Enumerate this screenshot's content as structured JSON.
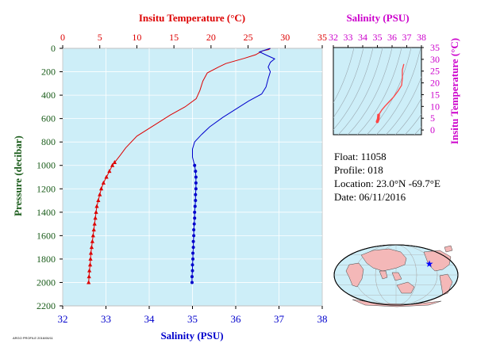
{
  "chart_data": [
    {
      "type": "line",
      "title": "",
      "top_axis": {
        "label": "Insitu Temperature (°C)",
        "range": [
          0,
          35
        ],
        "ticks": [
          0,
          5,
          10,
          15,
          20,
          25,
          30,
          35
        ],
        "color": "#dd0000"
      },
      "bottom_axis": {
        "label": "Salinity (PSU)",
        "range": [
          32,
          38
        ],
        "ticks": [
          32,
          33,
          34,
          35,
          36,
          37,
          38
        ],
        "color": "#0000cc"
      },
      "left_axis": {
        "label": "Pressure (decibar)",
        "range": [
          0,
          2200
        ],
        "inverted": true,
        "ticks": [
          0,
          200,
          400,
          600,
          800,
          1000,
          1200,
          1400,
          1600,
          1800,
          2000,
          2200
        ],
        "color": "#1a5c1a"
      },
      "background": "#cdeef8",
      "grid": true,
      "series": [
        {
          "key": "temperature",
          "axis": "top",
          "color": "#dd0000",
          "marker": "triangle",
          "points": [
            [
              28.0,
              0
            ],
            [
              27.8,
              10
            ],
            [
              27.0,
              20
            ],
            [
              26.0,
              55
            ],
            [
              24.5,
              85
            ],
            [
              22.0,
              130
            ],
            [
              21.0,
              160
            ],
            [
              19.5,
              210
            ],
            [
              18.9,
              280
            ],
            [
              18.5,
              360
            ],
            [
              18.0,
              430
            ],
            [
              16.5,
              500
            ],
            [
              14.5,
              570
            ],
            [
              12.5,
              650
            ],
            [
              10.0,
              750
            ],
            [
              8.5,
              850
            ],
            [
              7.8,
              910
            ],
            [
              7.0,
              975
            ],
            [
              6.7,
              1000
            ],
            [
              6.3,
              1050
            ],
            [
              5.9,
              1100
            ],
            [
              5.5,
              1150
            ],
            [
              5.2,
              1200
            ],
            [
              5.0,
              1250
            ],
            [
              4.8,
              1300
            ],
            [
              4.6,
              1350
            ],
            [
              4.5,
              1400
            ],
            [
              4.4,
              1450
            ],
            [
              4.3,
              1500
            ],
            [
              4.2,
              1550
            ],
            [
              4.1,
              1600
            ],
            [
              4.0,
              1650
            ],
            [
              3.9,
              1700
            ],
            [
              3.8,
              1750
            ],
            [
              3.75,
              1800
            ],
            [
              3.7,
              1850
            ],
            [
              3.6,
              1900
            ],
            [
              3.55,
              1950
            ],
            [
              3.5,
              2000
            ]
          ],
          "markers_from": 975
        },
        {
          "key": "salinity",
          "axis": "bottom",
          "color": "#0000cc",
          "marker": "dot",
          "points": [
            [
              36.8,
              0
            ],
            [
              36.55,
              30
            ],
            [
              36.72,
              60
            ],
            [
              36.9,
              90
            ],
            [
              36.8,
              120
            ],
            [
              36.75,
              160
            ],
            [
              36.8,
              200
            ],
            [
              36.75,
              260
            ],
            [
              36.7,
              330
            ],
            [
              36.6,
              390
            ],
            [
              36.3,
              450
            ],
            [
              36.0,
              520
            ],
            [
              35.7,
              590
            ],
            [
              35.4,
              670
            ],
            [
              35.2,
              740
            ],
            [
              35.05,
              800
            ],
            [
              35.0,
              860
            ],
            [
              35.0,
              930
            ],
            [
              35.05,
              1000
            ],
            [
              35.07,
              1050
            ],
            [
              35.08,
              1100
            ],
            [
              35.08,
              1150
            ],
            [
              35.08,
              1200
            ],
            [
              35.07,
              1250
            ],
            [
              35.07,
              1300
            ],
            [
              35.06,
              1350
            ],
            [
              35.05,
              1400
            ],
            [
              35.05,
              1450
            ],
            [
              35.04,
              1500
            ],
            [
              35.03,
              1550
            ],
            [
              35.03,
              1600
            ],
            [
              35.02,
              1650
            ],
            [
              35.02,
              1700
            ],
            [
              35.01,
              1750
            ],
            [
              35.01,
              1800
            ],
            [
              35.0,
              1850
            ],
            [
              35.0,
              1900
            ],
            [
              34.99,
              1950
            ],
            [
              34.99,
              2000
            ]
          ],
          "markers_from": 1000
        }
      ]
    },
    {
      "type": "scatter",
      "title": "",
      "x_axis": {
        "label": "Salinity (PSU)",
        "range": [
          32,
          38
        ],
        "ticks": [
          32,
          33,
          34,
          35,
          36,
          37,
          38
        ],
        "position": "top",
        "color": "#cc00cc"
      },
      "y_axis": {
        "label": "Insitu Temperature (°C)",
        "range": [
          -2,
          35
        ],
        "ticks": [
          0,
          5,
          10,
          15,
          20,
          25,
          30,
          35
        ],
        "position": "right",
        "color": "#cc00cc"
      },
      "background": "#cdeef8",
      "series": [
        {
          "key": "ts",
          "color": "#ff4444",
          "points": [
            [
              36.8,
              28.0
            ],
            [
              36.7,
              25.5
            ],
            [
              36.7,
              22.0
            ],
            [
              36.65,
              19.0
            ],
            [
              36.4,
              16.5
            ],
            [
              36.1,
              14.0
            ],
            [
              35.8,
              12.0
            ],
            [
              35.5,
              10.0
            ],
            [
              35.3,
              8.5
            ],
            [
              35.15,
              7.0
            ],
            [
              35.08,
              6.3
            ],
            [
              35.07,
              5.5
            ],
            [
              35.06,
              4.8
            ],
            [
              35.04,
              4.3
            ],
            [
              35.02,
              4.0
            ],
            [
              35.0,
              3.7
            ],
            [
              34.99,
              3.5
            ]
          ]
        }
      ]
    }
  ],
  "info": {
    "float_label": "Float:",
    "float_value": "11058",
    "profile_label": "Profile:",
    "profile_value": "018",
    "location_label": "Location:",
    "location_value": "23.0°N  -69.7°E",
    "date_label": "Date:",
    "date_value": "06/11/2016"
  },
  "map": {
    "marker_color": "#0000ff",
    "land_color": "#f4b8b8",
    "ocean_color": "#cdeef8",
    "marker_lat": 23.0,
    "marker_lon": -69.7
  },
  "footnote": "ARGO PROFILE  2016/06/11"
}
